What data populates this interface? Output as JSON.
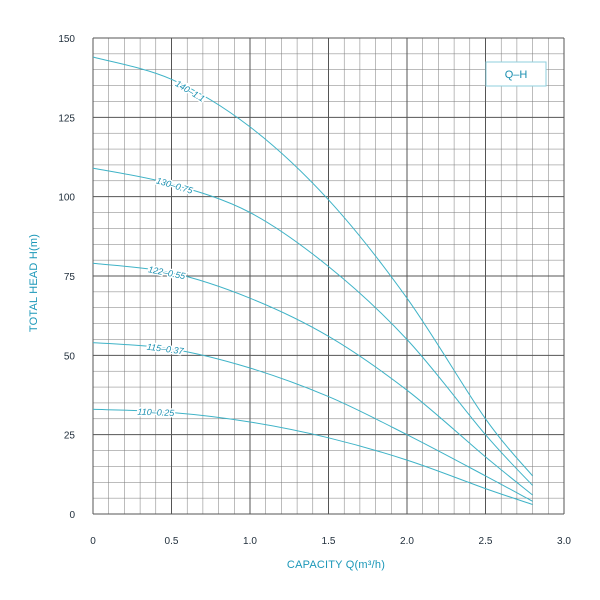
{
  "chart_data": {
    "type": "line",
    "title": "",
    "legend_box": "Q–H",
    "xlabel": "CAPACITY Q(m³/h)",
    "ylabel": "TOTAL HEAD H(m)",
    "xlim": [
      0,
      3.0
    ],
    "ylim": [
      0,
      150
    ],
    "xticks": [
      "0",
      "0.5",
      "1.0",
      "1.5",
      "2.0",
      "2.5",
      "3.0"
    ],
    "yticks": [
      "0",
      "25",
      "50",
      "75",
      "100",
      "125",
      "150"
    ],
    "grid": true,
    "curve_color": "#3fb3c7",
    "series": [
      {
        "name": "140–1.1",
        "x": [
          0,
          0.5,
          1.0,
          1.5,
          2.0,
          2.5,
          2.8
        ],
        "y": [
          144,
          137,
          122,
          99,
          68,
          30,
          12
        ]
      },
      {
        "name": "130–0.75",
        "x": [
          0,
          0.5,
          1.0,
          1.5,
          2.0,
          2.5,
          2.8
        ],
        "y": [
          109,
          104,
          95,
          78,
          55,
          25,
          9
        ]
      },
      {
        "name": "122–0.55",
        "x": [
          0,
          0.5,
          1.0,
          1.5,
          2.0,
          2.5,
          2.8
        ],
        "y": [
          79,
          76,
          68,
          56,
          39,
          18,
          6
        ]
      },
      {
        "name": "115–0.37",
        "x": [
          0,
          0.5,
          1.0,
          1.5,
          2.0,
          2.5,
          2.8
        ],
        "y": [
          54,
          52,
          46,
          37,
          25,
          12,
          4
        ]
      },
      {
        "name": "110–0.25",
        "x": [
          0,
          0.5,
          1.0,
          1.5,
          2.0,
          2.5,
          2.8
        ],
        "y": [
          33,
          32,
          29,
          24,
          17,
          8,
          3
        ]
      }
    ]
  }
}
